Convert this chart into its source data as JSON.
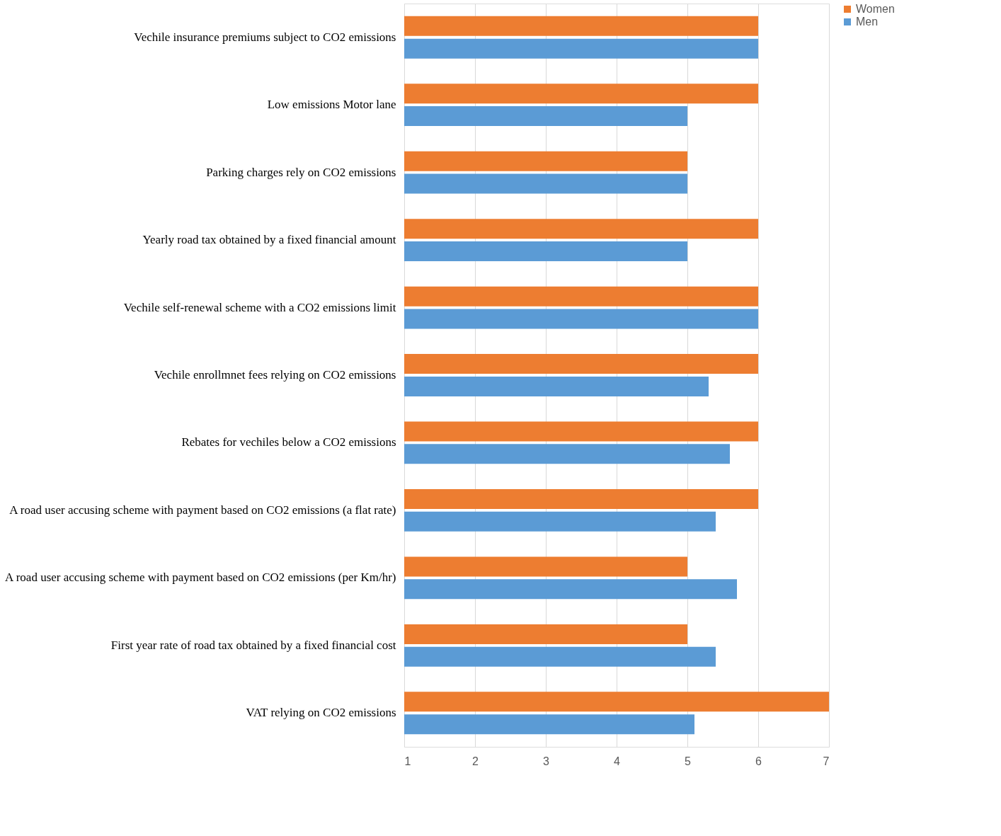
{
  "chart_data": {
    "type": "bar",
    "orientation": "horizontal",
    "categories": [
      "Vechile insurance premiums subject to CO2 emissions",
      "Low emissions Motor lane",
      "Parking charges rely on CO2 emissions",
      "Yearly road tax obtained by a fixed financial amount",
      "Vechile self-renewal scheme with a CO2 emissions limit",
      "Vechile enrollmnet fees relying on CO2 emissions",
      "Rebates for vechiles below a CO2 emissions",
      "A road user accusing scheme with payment based on CO2 emissions (a flat rate)",
      "A road user accusing scheme with payment based on CO2 emissions (per Km/hr)",
      "First year rate of road tax obtained by a fixed financial cost",
      "VAT relying on CO2 emissions"
    ],
    "series": [
      {
        "name": "Women",
        "color": "#ed7d31",
        "values": [
          6,
          6,
          5,
          6,
          6,
          6,
          6,
          6,
          5,
          5,
          7
        ]
      },
      {
        "name": "Men",
        "color": "#5b9bd5",
        "values": [
          6,
          5,
          5,
          5,
          6,
          5.3,
          5.6,
          5.4,
          5.7,
          5.4,
          5.1
        ]
      }
    ],
    "xlim": [
      1,
      7
    ],
    "xticks": [
      1,
      2,
      3,
      4,
      5,
      6,
      7
    ],
    "grid": "x",
    "legend": "right"
  }
}
